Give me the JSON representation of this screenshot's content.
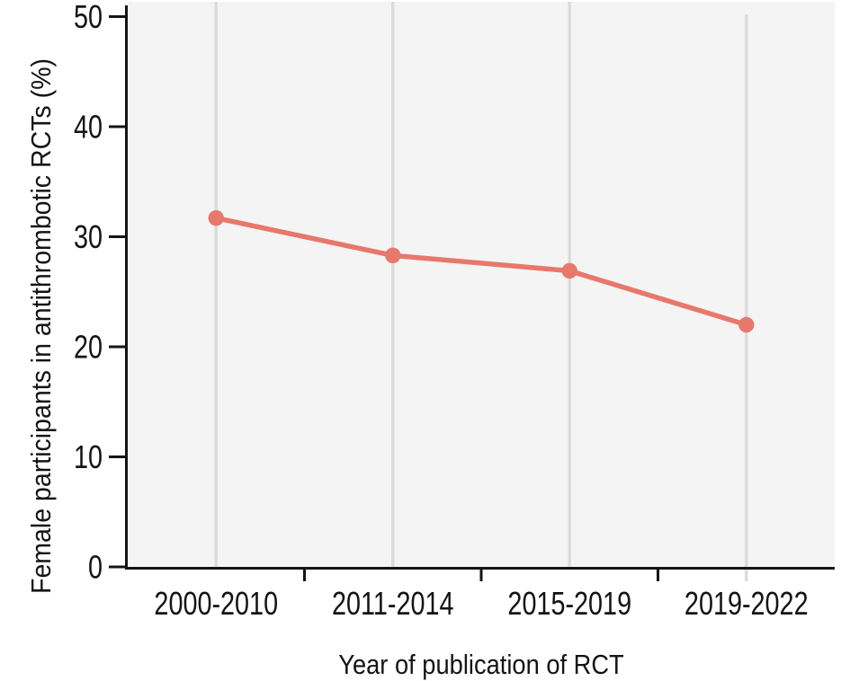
{
  "chart_data": {
    "type": "line",
    "categories": [
      "2000-2010",
      "2011-2014",
      "2015-2019",
      "2019-2022"
    ],
    "series": [
      {
        "name": "Female participants in antithrombotic RCTs",
        "values": [
          31.7,
          28.3,
          26.9,
          22.0
        ]
      }
    ],
    "xlabel": "Year of publication of RCT",
    "ylabel": "Female participants in antithrombotic RCTs (%)",
    "ylim": [
      0,
      50
    ],
    "yticks": [
      0,
      10,
      20,
      30,
      40,
      50
    ],
    "grid": "vertical-only",
    "legend_position": "none",
    "colors": {
      "line": "#e7786b",
      "marker": "#e7786b",
      "plot_background": "#f4f4f4",
      "gridline": "#dcdcdc",
      "axis": "#141414",
      "text": "#141414"
    }
  }
}
